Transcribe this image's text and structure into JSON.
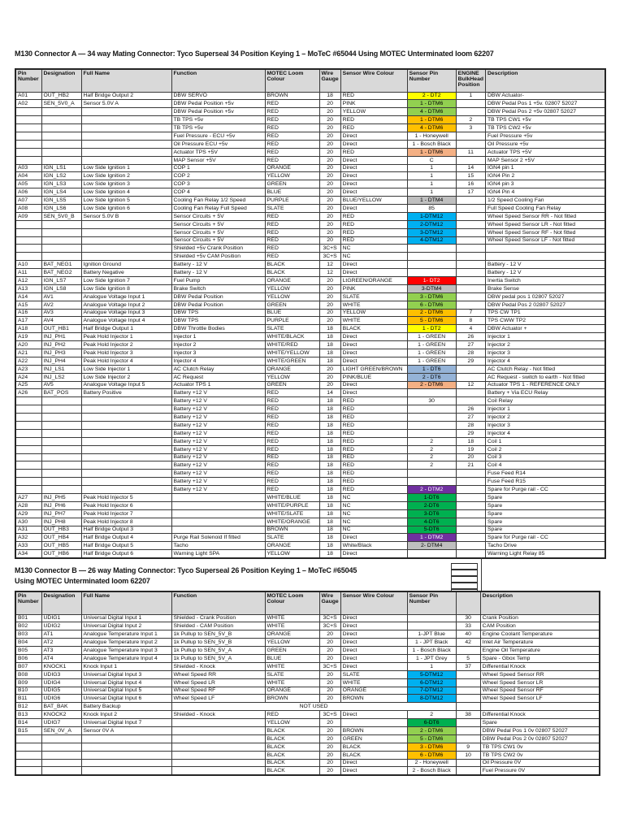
{
  "palette": {
    "yellow": {
      "bg": "#FFFF00",
      "fg": "#000000"
    },
    "lgreen": {
      "bg": "#92D050",
      "fg": "#000000"
    },
    "orange": {
      "bg": "#FFC000",
      "fg": "#000000"
    },
    "salmon": {
      "bg": "#F4B084",
      "fg": "#000000"
    },
    "red": {
      "bg": "#FF0000",
      "fg": "#FFFFFF"
    },
    "gray": {
      "bg": "#BFBFBF",
      "fg": "#000000"
    },
    "cyan": {
      "bg": "#00B0F0",
      "fg": "#000000"
    },
    "dgreen": {
      "bg": "#00B050",
      "fg": "#000000"
    },
    "blue": {
      "bg": "#95B3D7",
      "fg": "#000000"
    },
    "purple": {
      "bg": "#7030A0",
      "fg": "#FFFFFF"
    }
  },
  "table_a": {
    "title": "M130 Connector A — 34 way Mating Connector: Tyco Superseal 34 Position Keying 1 – MoTeC #65044 Using MOTEC Unterminated loom 62207",
    "headers": [
      "Pin Number",
      "Designation",
      "Full Name",
      "Function",
      "MOTEC Loom Colour",
      "Wire Gauge",
      "Sensor Wire Colour",
      "Sensor Pin Number",
      "ENGINE BulkHead Position",
      "Description"
    ],
    "rows": [
      [
        "A01",
        "OUT_HB2",
        "Half Bridge Output 2",
        "DBW SERVO",
        "BROWN",
        "18",
        "RED",
        "2 - DT2|yellow",
        "1",
        "DBW Actuator-"
      ],
      [
        "A02",
        "SEN_5V0_A",
        "Sensor 5.0V A",
        "DBW Pedal Position +5v",
        "RED",
        "20",
        "PINK",
        "1 - DTM6|lgreen",
        "",
        "DBW Pedal Pos 1 +5v. 02807 52027"
      ],
      [
        "",
        "",
        "",
        "DBW Pedal Position +5v",
        "RED",
        "20",
        "YELLOW",
        "4 - DTM6|lgreen",
        "",
        "DBW Pedal Pos 2 +5v 02807 52027"
      ],
      [
        "",
        "",
        "",
        "TB TPS +5v",
        "RED",
        "20",
        "RED",
        "1 - DTM6|orange",
        "2",
        "TB TPS CW1 +5v"
      ],
      [
        "",
        "",
        "",
        "TB TPS +5v",
        "RED",
        "20",
        "RED",
        "4 - DTM6|orange",
        "3",
        "TB TPS CW2 +5v"
      ],
      [
        "",
        "",
        "",
        "Fuel Pressure - ECU +5v",
        "RED",
        "20",
        "Direct",
        "1 - Honeywell",
        "",
        "Fuel Pressure +5v"
      ],
      [
        "",
        "",
        "",
        "Oil Pressure ECU +5v",
        "RED",
        "20",
        "Direct",
        "1 - Bosch Black",
        "",
        "Oil Pressure +5v"
      ],
      [
        "",
        "",
        "",
        "Actuator TPS +5V",
        "RED",
        "20",
        "RED",
        "1 - DTM6|salmon",
        "11",
        "Actuator TPS +5V"
      ],
      [
        "",
        "",
        "",
        "MAP Sensor +5V",
        "RED",
        "20",
        "Direct",
        "C",
        "",
        "MAP Sensor 2 +5V"
      ],
      [
        "A03",
        "IGN_LS1",
        "Low Side Ignition 1",
        "COP 1",
        "ORANGE",
        "20",
        "Direct",
        "1",
        "14",
        "IGN4 pin 1"
      ],
      [
        "A04",
        "IGN_LS2",
        "Low Side Ignition 2",
        "COP 2",
        "YELLOW",
        "20",
        "Direct",
        "1",
        "15",
        "IGN4 Pin 2"
      ],
      [
        "A05",
        "IGN_LS3",
        "Low Side Ignition 3",
        "COP 3",
        "GREEN",
        "20",
        "Direct",
        "1",
        "16",
        "IGN4 pin 3"
      ],
      [
        "A06",
        "IGN_LS4",
        "Low Side Ignition 4",
        "COP 4",
        "BLUE",
        "20",
        "Direct",
        "1",
        "17",
        "IGN4 Pin 4"
      ],
      [
        "A07",
        "IGN_LS5",
        "Low Side Ignition 5",
        "Cooling Fan Relay 1/2 Speed",
        "PURPLE",
        "20",
        "BLUE/YELLOW",
        "1 - DTM4|gray",
        "",
        "1/2 Speed Cooling Fan"
      ],
      [
        "A08",
        "IGN_LS6",
        "Low Side Ignition 6",
        "Cooling Fan Relay Full Speed",
        "SLATE",
        "20",
        "Direct",
        "85",
        "",
        "Full Speed Cooling Fan Relay"
      ],
      [
        "A09",
        "SEN_5V0_B",
        "Sensor 5.0V B",
        "Sensor Circuits + 5V",
        "RED",
        "20",
        "RED",
        "1-DTM12|cyan",
        "",
        "Wheel Speed Sensor RR - Not fitted"
      ],
      [
        "",
        "",
        "",
        "Sensor Circuits + 5V",
        "RED",
        "20",
        "RED",
        "2-DTM12|cyan",
        "",
        "Wheel Speed Sensor LR - Not fitted"
      ],
      [
        "",
        "",
        "",
        "Sensor Circuits + 5V",
        "RED",
        "20",
        "RED",
        "3-DTM12|cyan",
        "",
        "Wheel Speed Sensor RF - Not fitted"
      ],
      [
        "",
        "",
        "",
        "Sensor Circuits + 5V",
        "RED",
        "20",
        "RED",
        "4-DTM12|cyan",
        "",
        "Wheel Speed Sensor LF - Not fitted"
      ],
      [
        "",
        "",
        "",
        "Shielded +5v Crank Position",
        "RED",
        "3C+S",
        "NC",
        "",
        "",
        ""
      ],
      [
        "",
        "",
        "",
        "Shielded +5v CAM Position",
        "RED",
        "3C+S",
        "NC",
        "",
        "",
        ""
      ],
      [
        "A10",
        "BAT_NEG1",
        "Ignition Ground",
        "Battery - 12 V",
        "BLACK",
        "12",
        "Direct",
        "",
        "",
        "Battery - 12 V"
      ],
      [
        "A11",
        "BAT_NEG2",
        "Battery Negative",
        "Battery - 12 V",
        "BLACK",
        "12",
        "Direct",
        "",
        "",
        "Battery - 12 V"
      ],
      [
        "A12",
        "IGN_LS7",
        "Low Side Ignition 7",
        "Fuel Pump",
        "ORANGE",
        "20",
        "LtGREEN/ORANGE",
        "1- DT2|red",
        "",
        "Inertia Switch"
      ],
      [
        "A13",
        "IGN_LS8",
        "Low Side Ignition 8",
        "Brake Switch",
        "YELLOW",
        "20",
        "PINK",
        "3-DTM4|gray",
        "",
        "Brake Sense"
      ],
      [
        "A14",
        "AV1",
        "Analogue Voltage Input 1",
        "DBW Pedal Position",
        "YELLOW",
        "20",
        "SLATE",
        "3 - DTM6|lgreen",
        "",
        "DBW pedal pos 1 02807 52027"
      ],
      [
        "A15",
        "AV2",
        "Analogue Voltage Input 2",
        "DBW Pedal Position",
        "GREEN",
        "20",
        "WHITE",
        "6 - DTM6|lgreen",
        "",
        "DBW Pedal Pos 2 02807 52027"
      ],
      [
        "A16",
        "AV3",
        "Analogue Voltage Input 3",
        "DBW TPS",
        "BLUE",
        "20",
        "YELLOW",
        "2 - DTM6|orange",
        "7",
        "TPS CW TP1"
      ],
      [
        "A17",
        "AV4",
        "Analogue Voltage Input 4",
        "DBW TPS",
        "PURPLE",
        "20",
        "WHITE",
        "5 - DTM6|orange",
        "8",
        "TPS CWW TP2"
      ],
      [
        "A18",
        "OUT_HB1",
        "Half Bridge Output 1",
        "DBW Throttle Bodies",
        "SLATE",
        "18",
        "BLACK",
        "1 - DT2|yellow",
        "4",
        "DBW Actuator +"
      ],
      [
        "A19",
        "INJ_PH1",
        "Peak Hold Injector 1",
        "Injector 1",
        "WHITE/BLACK",
        "18",
        "Direct",
        "1 - GREEN",
        "26",
        "Injector 1"
      ],
      [
        "A20",
        "INJ_PH2",
        "Peak Hold Injector 2",
        "Injector 2",
        "WHITE/RED",
        "18",
        "Direct",
        "1 - GREEN",
        "27",
        "Injector 2"
      ],
      [
        "A21",
        "INJ_PH3",
        "Peak Hold Injector 3",
        "Injector 3",
        "WHITE/YELLOW",
        "18",
        "Direct",
        "1 - GREEN",
        "28",
        "Injector 3"
      ],
      [
        "A22",
        "INJ_PH4",
        "Peak Hold Injector 4",
        "Injector 4",
        "WHITE/GREEN",
        "18",
        "Direct",
        "1 - GREEN",
        "29",
        "Injector 4"
      ],
      [
        "A23",
        "INJ_LS1",
        "Low Side Injector 1",
        "AC Clutch Relay",
        "ORANGE",
        "20",
        "LIGHT GREEN/BROWN",
        "1 - DT6|blue",
        "",
        "AC Clutch Relay - Not fitted"
      ],
      [
        "A24",
        "INJ_LS2",
        "Low Side Injector 2",
        "AC Request",
        "YELLOW",
        "20",
        "PINK/BLUE",
        "2 - DT6|blue",
        "",
        "AC Request - switch to earth - Not fitted"
      ],
      [
        "A25",
        "AV5",
        "Analogue Voltage Input 5",
        "Actuator TPS 1",
        "GREEN",
        "20",
        "Direct",
        "2 - DTM6|salmon",
        "12",
        "Actuator TPS 1 - REFERENCE ONLY"
      ],
      [
        "A26",
        "BAT_POS",
        "Battery Positive",
        "Battery +12 V",
        "RED",
        "14",
        "Direct",
        "",
        "",
        "Battery + Via ECU Relay"
      ],
      [
        "",
        "",
        "",
        "Battery +12 V",
        "RED",
        "18",
        "RED",
        "30",
        "",
        "Coil Relay"
      ],
      [
        "",
        "",
        "",
        "Battery +12 V",
        "RED",
        "18",
        "RED",
        "",
        "26",
        "Injector 1"
      ],
      [
        "",
        "",
        "",
        "Battery +12 V",
        "RED",
        "18",
        "RED",
        "",
        "27",
        "Injector 2"
      ],
      [
        "",
        "",
        "",
        "Battery +12 V",
        "RED",
        "18",
        "RED",
        "",
        "28",
        "Injector 3"
      ],
      [
        "",
        "",
        "",
        "Battery +12 V",
        "RED",
        "18",
        "RED",
        "",
        "29",
        "Injector 4"
      ],
      [
        "",
        "",
        "",
        "Battery +12 V",
        "RED",
        "18",
        "RED",
        "2",
        "18",
        "Coil 1"
      ],
      [
        "",
        "",
        "",
        "Battery +12 V",
        "RED",
        "18",
        "RED",
        "2",
        "19",
        "Coil 2"
      ],
      [
        "",
        "",
        "",
        "Battery +12 V",
        "RED",
        "18",
        "RED",
        "2",
        "20",
        "Coil 3"
      ],
      [
        "",
        "",
        "",
        "Battery +12 V",
        "RED",
        "18",
        "RED",
        "2",
        "21",
        "Coil 4"
      ],
      [
        "",
        "",
        "",
        "Battery +12 V",
        "RED",
        "18",
        "RED",
        "",
        "",
        "Fuse Feed R14"
      ],
      [
        "",
        "",
        "",
        "Battery +12 V",
        "RED",
        "18",
        "RED",
        "",
        "",
        "Fuse Feed R15"
      ],
      [
        "",
        "",
        "",
        "Battery +12 V",
        "RED",
        "18",
        "RED",
        "2 - DTM2|purple",
        "",
        "Spare for Purge rail - CC"
      ],
      [
        "A27",
        "INJ_PH5",
        "Peak Hold Injector 5",
        "",
        "WHITE/BLUE",
        "18",
        "NC",
        "1-DT6|dgreen",
        "",
        "Spare"
      ],
      [
        "A28",
        "INJ_PH6",
        "Peak Hold Injector 6",
        "",
        "WHITE/PURPLE",
        "18",
        "NC",
        "2-DT6|dgreen",
        "",
        "Spare"
      ],
      [
        "A29",
        "INJ_PH7",
        "Peak Hold Injector 7",
        "",
        "WHITE/SLATE",
        "18",
        "NC",
        "3-DT6|dgreen",
        "",
        "Spare"
      ],
      [
        "A30",
        "INJ_PH8",
        "Peak Hold Injector 8",
        "",
        "WHITE/ORANGE",
        "18",
        "NC",
        "4-DT6|dgreen",
        "",
        "Spare"
      ],
      [
        "A31",
        "OUT_HB3",
        "Half Bridge Output 3",
        "",
        "BROWN",
        "18",
        "NC",
        "5-DT6|dgreen",
        "",
        "Spare"
      ],
      [
        "A32",
        "OUT_HB4",
        "Half Bridge Output 4",
        "Purge Rail Solenoid If fitted",
        "SLATE",
        "18",
        "Direct",
        "1 - DTM2|purple",
        "",
        "Spare for Purge rail - CC"
      ],
      [
        "A33",
        "OUT_HB5",
        "Half Bridge Output 5",
        "Tacho",
        "ORANGE",
        "18",
        "White/Black",
        "2- DTM4|gray",
        "",
        "Tacho Drive"
      ],
      [
        "A34",
        "OUT_HB6",
        "Half Bridge Output 6",
        "Warning Light SPA",
        "YELLOW",
        "18",
        "Direct",
        "",
        "",
        "Warning Light Relay 85"
      ]
    ]
  },
  "table_b": {
    "title_line1": "M130 Connector B — 26 way Mating Connector: Tyco Superseal 26 Position Keying 1 – MoTeC #65045",
    "title_line2": "Using MOTEC Unterminated loom 62207",
    "headers": [
      "Pin Number",
      "Designation",
      "Full Name",
      "Function",
      "MOTEC Loom Colour",
      "Wire Gauge",
      "Sensor Wire Colour",
      "Sensor Pin Number",
      "",
      "Description"
    ],
    "rows": [
      [
        "B01",
        "UDIG1",
        "Universal Digital Input 1",
        "Shielded - Crank Position",
        "WHITE",
        "3C+S",
        "Direct",
        "",
        "30",
        "Crank Position"
      ],
      [
        "B02",
        "UDIG2",
        "Universal Digital Input 2",
        "Shielded - CAM Position",
        "WHITE",
        "3C+S",
        "Direct",
        "",
        "33",
        "CAM Position"
      ],
      [
        "B03",
        "AT1",
        "Analogue Temperature Input 1",
        "1k Pullup to SEN_5V_B",
        "ORANGE",
        "20",
        "Direct",
        "1-JPT Blue",
        "40",
        "Engine Coolant Temperature"
      ],
      [
        "B04",
        "AT2",
        "Analogue Temperature Input 2",
        "1k Pullup to SEN_5V_B",
        "YELLOW",
        "20",
        "Direct",
        "1 - JPT Black",
        "42",
        "Inlet Air Temperature"
      ],
      [
        "B05",
        "AT3",
        "Analogue Temperature Input 3",
        "1k Pullup to SEN_5V_A",
        "GREEN",
        "20",
        "Direct",
        "1 - Bosch Black",
        "",
        "Engine Oil Temperature"
      ],
      [
        "B06",
        "AT4",
        "Analogue Temperature Input 4",
        "1k Pullup to SEN_5V_A",
        "BLUE",
        "20",
        "Direct",
        "1 - JPT Grey",
        "5",
        "Spare - Gbox Temp"
      ],
      [
        "B07",
        "KNOCK1",
        "Knock Input 1",
        "Shielded - Knock",
        "WHITE",
        "3C+S",
        "Direct",
        "1",
        "37",
        "Differential Knock"
      ],
      [
        "B08",
        "UDIG3",
        "Universal Digital Input 3",
        "Wheel Speed RR",
        "SLATE",
        "20",
        "SLATE",
        "5-DTM12|cyan",
        "",
        "Wheel Speed Sensor RR"
      ],
      [
        "B09",
        "UDIG4",
        "Universal Digital Input 4",
        "Wheel Speed LR",
        "WHITE",
        "20",
        "WHITE",
        "6-DTM12|cyan",
        "",
        "Wheel Speed Sensor LR"
      ],
      [
        "B10",
        "UDIG5",
        "Universal Digital Input 5",
        "Wheel Speed RF",
        "ORANGE",
        "20",
        "ORANGE",
        "7-DTM12|cyan",
        "",
        "Wheel Speed Sensor RF"
      ],
      [
        "B11",
        "UDIG6",
        "Universal Digital Input 6",
        "Wheel Speed LF",
        "BROWN",
        "20",
        "BROWN",
        "8-DTM12|cyan",
        "",
        "Wheel Speed Sensor LF"
      ],
      [
        "B12",
        "BAT_BAK",
        "Battery Backup",
        "NOT USED|merge",
        "",
        "",
        "",
        "",
        "",
        ""
      ],
      [
        "B13",
        "KNOCK2",
        "Knock Input 2",
        "Shielded - Knock",
        "RED",
        "3C+S",
        "Direct",
        "2",
        "38",
        "Differential Knock"
      ],
      [
        "B14",
        "UDIG7",
        "Universal Digital Input 7",
        "",
        "YELLOW",
        "20",
        "",
        "6-DT6|dgreen",
        "",
        "Spare"
      ],
      [
        "B15",
        "SEN_0V_A",
        "Sensor 0V A",
        "",
        "BLACK",
        "20",
        "BROWN",
        "2 - DTM6|lgreen",
        "",
        "DBW Pedal Pos 1 0v 02807 52027"
      ],
      [
        "",
        "",
        "",
        "",
        "BLACK",
        "20",
        "GREEN",
        "5 - DTM6|lgreen",
        "",
        "DBW Pedal Pos 2 0v 02807 52027"
      ],
      [
        "",
        "",
        "",
        "",
        "BLACK",
        "20",
        "BLACK",
        "3 - DTM6|orange",
        "9",
        "TB TPS CW1 0v"
      ],
      [
        "",
        "",
        "",
        "",
        "BLACK",
        "20",
        "BLACK",
        "6 - DTM6|orange",
        "10",
        "TB TPS CW2 0v"
      ],
      [
        "",
        "",
        "",
        "",
        "BLACK",
        "20",
        "Direct",
        "2 - Honeywell",
        "",
        "Oil Pressure 0V"
      ],
      [
        "",
        "",
        "",
        "",
        "BLACK",
        "20",
        "Direct",
        "2 - Bosch Black",
        "",
        "Fuel Pressure 0V"
      ]
    ]
  }
}
